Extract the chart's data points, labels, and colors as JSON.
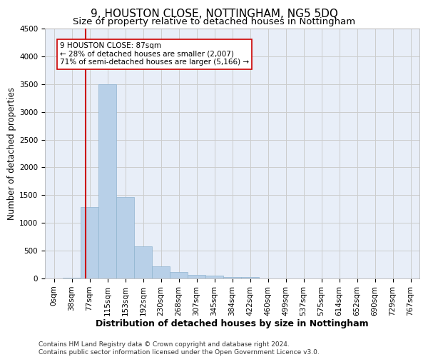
{
  "title": "9, HOUSTON CLOSE, NOTTINGHAM, NG5 5DQ",
  "subtitle": "Size of property relative to detached houses in Nottingham",
  "xlabel": "Distribution of detached houses by size in Nottingham",
  "ylabel": "Number of detached properties",
  "footer_line1": "Contains HM Land Registry data © Crown copyright and database right 2024.",
  "footer_line2": "Contains public sector information licensed under the Open Government Licence v3.0.",
  "bin_labels": [
    "0sqm",
    "38sqm",
    "77sqm",
    "115sqm",
    "153sqm",
    "192sqm",
    "230sqm",
    "268sqm",
    "307sqm",
    "345sqm",
    "384sqm",
    "422sqm",
    "460sqm",
    "499sqm",
    "537sqm",
    "575sqm",
    "614sqm",
    "652sqm",
    "690sqm",
    "729sqm",
    "767sqm"
  ],
  "bar_values": [
    5,
    10,
    1280,
    3500,
    1460,
    580,
    220,
    110,
    70,
    50,
    30,
    20,
    5,
    3,
    0,
    0,
    2,
    0,
    0,
    0,
    0
  ],
  "bar_color": "#b8d0e8",
  "bar_edge_color": "#90b4d0",
  "vline_color": "#cc0000",
  "annotation_box_color": "#ffffff",
  "annotation_box_edge": "#cc0000",
  "property_label": "9 HOUSTON CLOSE: 87sqm",
  "annotation_line1": "← 28% of detached houses are smaller (2,007)",
  "annotation_line2": "71% of semi-detached houses are larger (5,166) →",
  "ylim": [
    0,
    4500
  ],
  "yticks": [
    0,
    500,
    1000,
    1500,
    2000,
    2500,
    3000,
    3500,
    4000,
    4500
  ],
  "grid_color": "#cccccc",
  "bg_color": "#e8eef8",
  "title_fontsize": 11,
  "subtitle_fontsize": 9.5,
  "axis_label_fontsize": 8.5,
  "tick_fontsize": 7.5,
  "footer_fontsize": 6.5
}
